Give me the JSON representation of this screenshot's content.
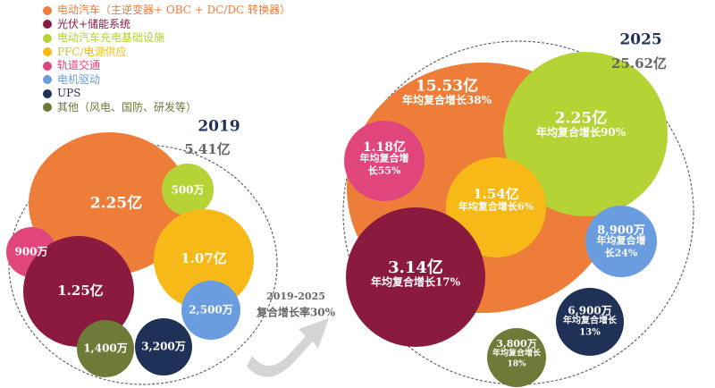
{
  "chart_data": {
    "type": "bubble",
    "legend": {
      "placement": "top-left",
      "entries": [
        {
          "name": "电动汽车（主逆变器+ OBC + DC/DC 转换器）",
          "color": "#ee7d3a"
        },
        {
          "name": "光伏+储能系统",
          "color": "#8b1a3f"
        },
        {
          "name": "电动汽车充电基础设施",
          "color": "#b5d334"
        },
        {
          "name": "PFC/电源供应",
          "color": "#f6b918"
        },
        {
          "name": "轨道交通",
          "color": "#e0457b"
        },
        {
          "name": "电机驱动",
          "color": "#6a9de0"
        },
        {
          "name": "UPS",
          "color": "#1f3157"
        },
        {
          "name": "其他（风电、国防、研发等）",
          "color": "#6e7a38"
        }
      ]
    },
    "groups": [
      {
        "year": "2019",
        "total": "5.41亿",
        "bubbles": [
          {
            "segment": "电动汽车",
            "value": "2.25亿",
            "growth": ""
          },
          {
            "segment": "电动汽车充电基础设施",
            "value": "500万",
            "growth": ""
          },
          {
            "segment": "PFC/电源供应",
            "value": "1.07亿",
            "growth": ""
          },
          {
            "segment": "轨道交通",
            "value": "900万",
            "growth": ""
          },
          {
            "segment": "光伏+储能系统",
            "value": "1.25亿",
            "growth": ""
          },
          {
            "segment": "电机驱动",
            "value": "2,500万",
            "growth": ""
          },
          {
            "segment": "其他",
            "value": "1,400万",
            "growth": ""
          },
          {
            "segment": "UPS",
            "value": "3,200万",
            "growth": ""
          }
        ]
      },
      {
        "year": "2025",
        "total": "25.62亿",
        "bubbles": [
          {
            "segment": "电动汽车",
            "value": "15.53亿",
            "growth": [
              "年均复合增长38%"
            ]
          },
          {
            "segment": "电动汽车充电基础设施",
            "value": "2.25亿",
            "growth": [
              "年均复合增长90%"
            ]
          },
          {
            "segment": "轨道交通",
            "value": "1.18亿",
            "growth": [
              "年均复合增",
              "长55%"
            ]
          },
          {
            "segment": "PFC/电源供应",
            "value": "1.54亿",
            "growth": [
              "年均复合增长6%"
            ]
          },
          {
            "segment": "光伏+储能系统",
            "value": "3.14亿",
            "growth": [
              "年均复合增长17%"
            ]
          },
          {
            "segment": "电机驱动",
            "value": "8,900万",
            "growth": [
              "年均复合增",
              "长24%"
            ]
          },
          {
            "segment": "UPS",
            "value": "6,900万",
            "growth": [
              "年均复合增长",
              "13%"
            ]
          },
          {
            "segment": "其他",
            "value": "3,800万",
            "growth": [
              "年均复合增长",
              "18%"
            ]
          }
        ]
      }
    ],
    "arrow": {
      "period": "2019-2025",
      "label": "复合增长率30%"
    }
  }
}
